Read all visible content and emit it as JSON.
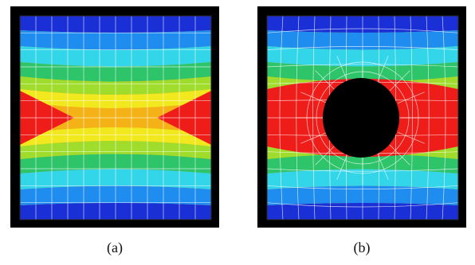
{
  "figure": {
    "panels": [
      {
        "id": "a",
        "caption": "(a)",
        "has_hole": false
      },
      {
        "id": "b",
        "caption": "(b)",
        "has_hole": true
      }
    ]
  },
  "colors": {
    "frame": "#000000",
    "mesh": "#ffffff",
    "hole": "#000000",
    "bands": [
      "#1a2fd6",
      "#1f8df0",
      "#33d6e8",
      "#2ec46a",
      "#9fdc2c",
      "#f2e81e",
      "#f5b216",
      "#f39a1a",
      "#ef1d1a"
    ]
  }
}
